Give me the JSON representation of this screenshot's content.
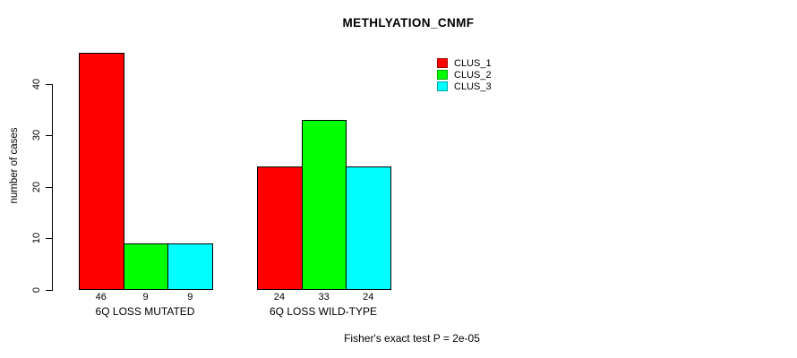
{
  "title": "METHLYATION_CNMF",
  "footer": "Fisher's exact test P = 2e-05",
  "legend": {
    "items": [
      {
        "label": "CLUS_1",
        "color": "#ff0000"
      },
      {
        "label": "CLUS_2",
        "color": "#00ff00"
      },
      {
        "label": "CLUS_3",
        "color": "#00ffff"
      }
    ]
  },
  "chart_data": {
    "type": "bar",
    "title": "METHLYATION_CNMF",
    "ylabel": "number of cases",
    "xlabel": "",
    "categories": [
      "6Q LOSS MUTATED",
      "6Q LOSS WILD-TYPE"
    ],
    "series": [
      {
        "name": "CLUS_1",
        "color": "#ff0000",
        "values": [
          46,
          24
        ]
      },
      {
        "name": "CLUS_2",
        "color": "#00ff00",
        "values": [
          9,
          33
        ]
      },
      {
        "name": "CLUS_3",
        "color": "#00ffff",
        "values": [
          9,
          24
        ]
      }
    ],
    "bar_value_labels": [
      [
        46,
        9,
        9
      ],
      [
        24,
        33,
        24
      ]
    ],
    "yticks": [
      0,
      10,
      20,
      30,
      40
    ],
    "ylim": [
      0,
      46
    ],
    "grid": false,
    "legend_position": "top-right",
    "annotation": "Fisher's exact test P = 2e-05"
  }
}
